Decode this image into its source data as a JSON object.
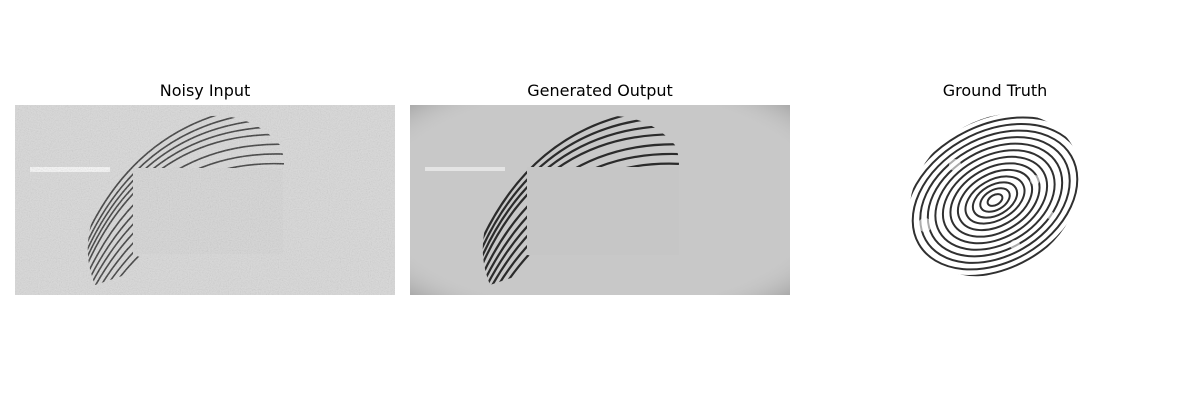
{
  "panels": [
    {
      "title": "Noisy Input",
      "content": "noisy-fingerprint-image"
    },
    {
      "title": "Generated Output",
      "content": "denoised-fingerprint-image"
    },
    {
      "title": "Ground Truth",
      "content": "clean-fingerprint-image"
    }
  ],
  "colors": {
    "noisy_background": "#d9d9d9",
    "generated_background": "#c8c8c8",
    "ground_truth_background": "#ffffff",
    "ridge": "#1a1a1a"
  }
}
